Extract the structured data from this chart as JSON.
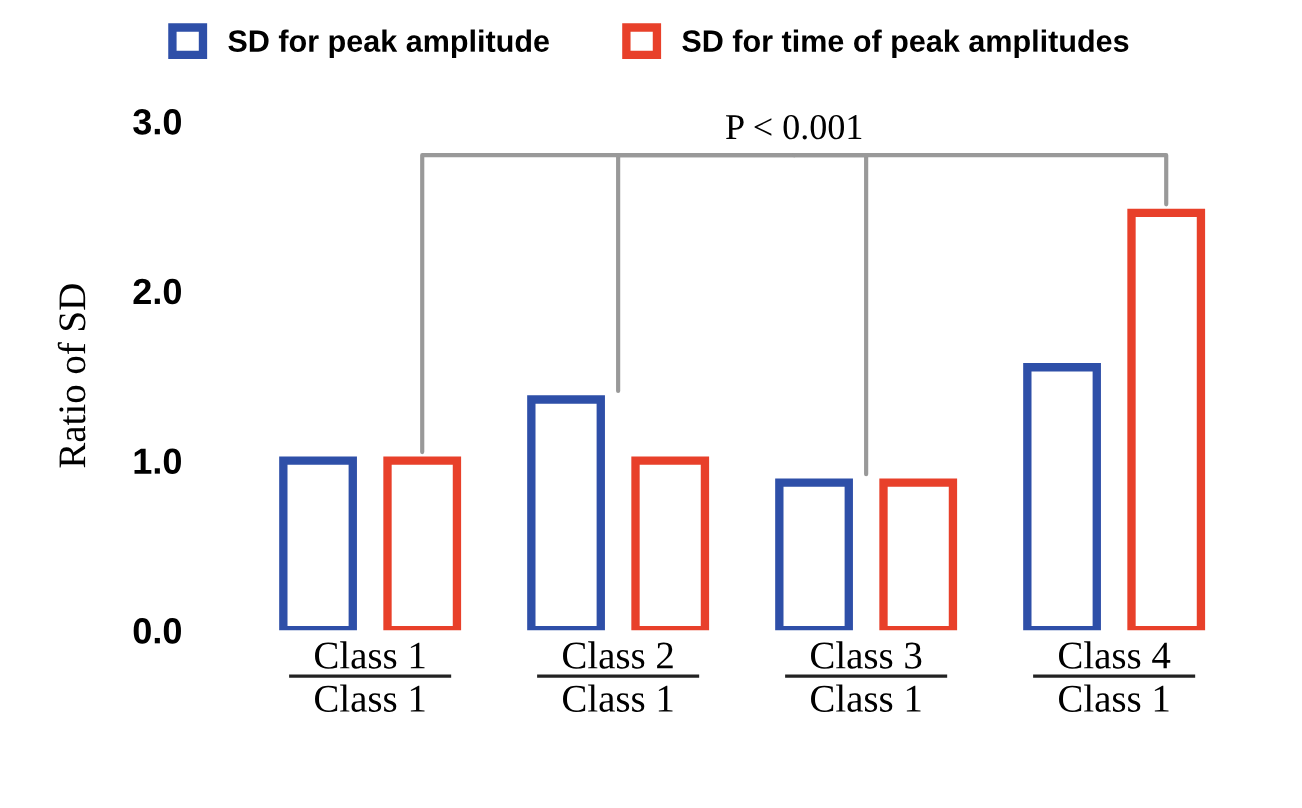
{
  "chart_data": {
    "type": "bar",
    "ylabel": "Ratio of SD",
    "categories": [
      "Class 1",
      "Class 2",
      "Class 3",
      "Class 4"
    ],
    "series": [
      {
        "name": "SD for peak amplitude",
        "color": "#2e4fa8",
        "values": [
          1.0,
          1.36,
          0.87,
          1.55
        ]
      },
      {
        "name": "SD for time of peak amplitudes",
        "color": "#e8402a",
        "values": [
          1.0,
          1.0,
          0.87,
          2.46
        ]
      }
    ],
    "ylim": [
      0,
      3.0
    ],
    "yticks": [
      {
        "value": 0,
        "label": "0.0"
      },
      {
        "value": 1,
        "label": "1.0"
      },
      {
        "value": 2,
        "label": "2.0"
      },
      {
        "value": 3,
        "label": "3.0"
      }
    ],
    "grid": false,
    "legend": "top",
    "annotations": [
      "P < 0.001",
      "Class 1",
      "Class 1",
      "Class 1",
      "Class 1"
    ]
  }
}
